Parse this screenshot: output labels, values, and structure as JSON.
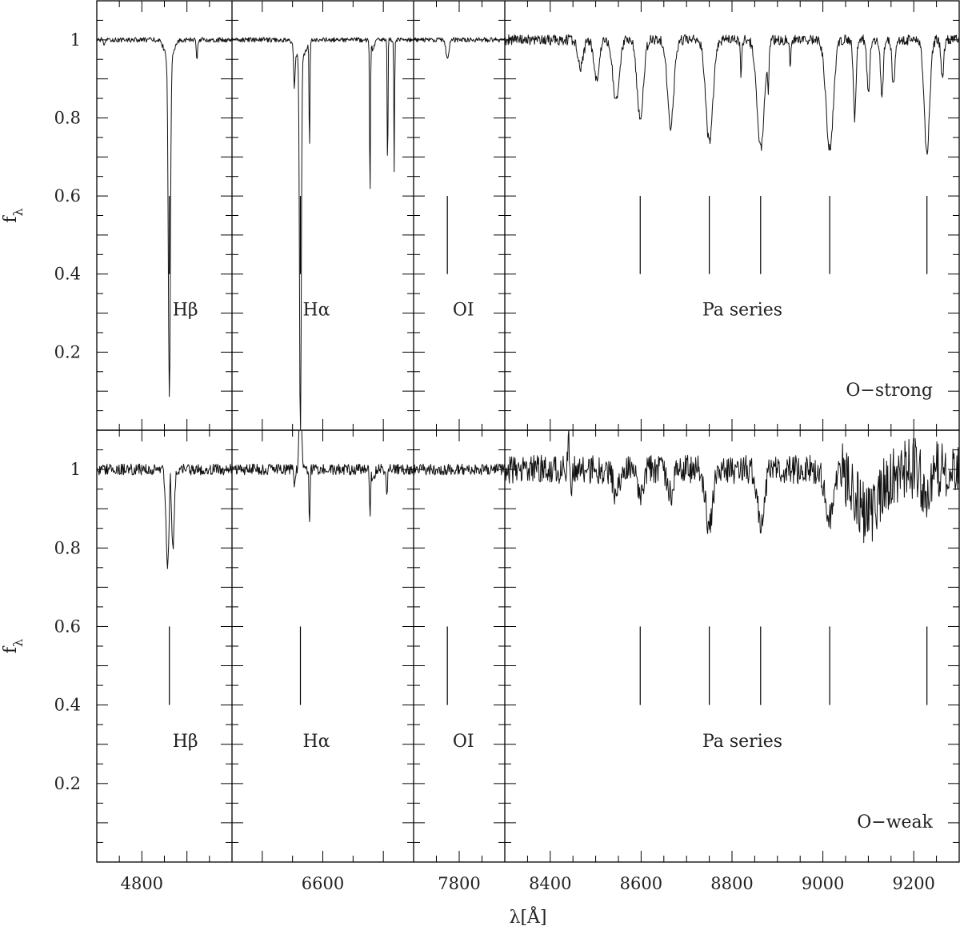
{
  "chart_data": {
    "type": "line",
    "xlabel": "λ[Å]",
    "ylabel_main": "f",
    "ylabel_sub": "λ",
    "ylim": [
      0,
      1.1
    ],
    "y_ticks": [
      0.2,
      0.4,
      0.6,
      0.8,
      1
    ],
    "y_tick_labels": [
      "0.2",
      "0.4",
      "0.6",
      "0.8",
      "1"
    ],
    "segments": [
      {
        "xrange": [
          4700,
          5000
        ],
        "ticks": [
          4800
        ],
        "tick_labels": [
          "4800"
        ]
      },
      {
        "xrange": [
          6450,
          6750
        ],
        "ticks": [
          6600
        ],
        "tick_labels": [
          "6600"
        ]
      },
      {
        "xrange": [
          7700,
          7900
        ],
        "ticks": [
          7800
        ],
        "tick_labels": [
          "7800"
        ]
      },
      {
        "xrange": [
          8300,
          9300
        ],
        "ticks": [
          8400,
          8600,
          8800,
          9000,
          9200
        ],
        "tick_labels": [
          "8400",
          "8600",
          "8800",
          "9000",
          "9200"
        ]
      }
    ],
    "lines": [
      {
        "name": "Hβ",
        "segment": 0,
        "wavelengths": [
          4861
        ]
      },
      {
        "name": "Hα",
        "segment": 1,
        "wavelengths": [
          6563
        ]
      },
      {
        "name": "OI",
        "segment": 2,
        "wavelengths": [
          7774
        ]
      },
      {
        "name": "Pa series",
        "segment": 3,
        "wavelengths": [
          8598,
          8750,
          8863,
          9015,
          9229
        ]
      }
    ],
    "panels": [
      {
        "name": "O−strong",
        "noise": 0.006,
        "features": [
          {
            "x": 4861,
            "depth": 0.86,
            "width": 2.2,
            "wing": 0.06,
            "wing_width": 9
          },
          {
            "x": 4922,
            "depth": 0.05,
            "width": 1.5
          },
          {
            "x": 4716,
            "depth": 0.02,
            "width": 1.5
          },
          {
            "x": 6563,
            "depth": 0.98,
            "width": 1.4,
            "wing": 0.05,
            "wing_width": 8
          },
          {
            "x": 6553,
            "depth": 0.1,
            "width": 1.2
          },
          {
            "x": 6578,
            "depth": 0.28,
            "width": 0.7
          },
          {
            "x": 6678,
            "depth": 0.42,
            "width": 0.7
          },
          {
            "x": 6683,
            "depth": 0.03,
            "width": 2.0
          },
          {
            "x": 6707,
            "depth": 0.37,
            "width": 0.6
          },
          {
            "x": 6718,
            "depth": 0.34,
            "width": 0.6
          },
          {
            "x": 7774,
            "depth": 0.05,
            "width": 3.0
          },
          {
            "x": 8467,
            "depth": 0.07,
            "width": 6
          },
          {
            "x": 8502,
            "depth": 0.1,
            "width": 6
          },
          {
            "x": 8545,
            "depth": 0.16,
            "width": 7
          },
          {
            "x": 8598,
            "depth": 0.2,
            "width": 7
          },
          {
            "x": 8665,
            "depth": 0.22,
            "width": 7
          },
          {
            "x": 8750,
            "depth": 0.26,
            "width": 8
          },
          {
            "x": 8863,
            "depth": 0.28,
            "width": 8
          },
          {
            "x": 8820,
            "depth": 0.09,
            "width": 1.5
          },
          {
            "x": 8880,
            "depth": 0.11,
            "width": 1.5
          },
          {
            "x": 8928,
            "depth": 0.06,
            "width": 1.5
          },
          {
            "x": 9015,
            "depth": 0.28,
            "width": 8
          },
          {
            "x": 9070,
            "depth": 0.2,
            "width": 3
          },
          {
            "x": 9100,
            "depth": 0.14,
            "width": 3
          },
          {
            "x": 9130,
            "depth": 0.15,
            "width": 3
          },
          {
            "x": 9155,
            "depth": 0.12,
            "width": 3
          },
          {
            "x": 9229,
            "depth": 0.29,
            "width": 6
          },
          {
            "x": 9263,
            "depth": 0.1,
            "width": 3
          }
        ]
      },
      {
        "name": "O−weak",
        "noise": 0.014,
        "features": [
          {
            "x": 4857,
            "depth": 0.24,
            "width": 3.5
          },
          {
            "x": 4869,
            "depth": 0.2,
            "width": 3.0
          },
          {
            "x": 4863,
            "depth": -0.06,
            "width": 1.5
          },
          {
            "x": 6563,
            "depth": -0.4,
            "width": 1.5
          },
          {
            "x": 6553,
            "depth": 0.04,
            "width": 1.2
          },
          {
            "x": 6578,
            "depth": 0.14,
            "width": 0.8
          },
          {
            "x": 6678,
            "depth": 0.12,
            "width": 0.8
          },
          {
            "x": 6683,
            "depth": 0.03,
            "width": 2.0
          },
          {
            "x": 6706,
            "depth": 0.06,
            "width": 1.0
          },
          {
            "x": 8447,
            "depth": 0.1,
            "width": 1.2
          },
          {
            "x": 8440,
            "depth": -0.1,
            "width": 1.5
          },
          {
            "x": 8545,
            "depth": 0.07,
            "width": 6
          },
          {
            "x": 8598,
            "depth": 0.07,
            "width": 6
          },
          {
            "x": 8665,
            "depth": 0.06,
            "width": 6
          },
          {
            "x": 8750,
            "depth": 0.14,
            "width": 8
          },
          {
            "x": 8863,
            "depth": 0.13,
            "width": 8
          },
          {
            "x": 9015,
            "depth": 0.12,
            "width": 9
          },
          {
            "x": 9100,
            "depth": 0.12,
            "width": 25
          },
          {
            "x": 9229,
            "depth": 0.1,
            "width": 8
          }
        ]
      }
    ]
  }
}
